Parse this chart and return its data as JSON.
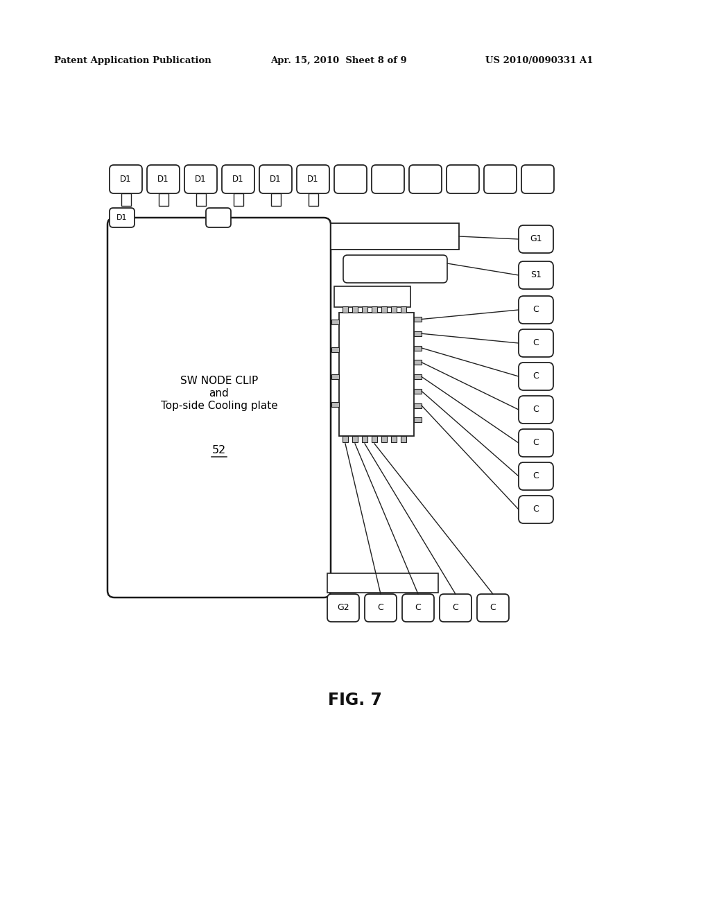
{
  "bg_color": "#ffffff",
  "header_left": "Patent Application Publication",
  "header_mid": "Apr. 15, 2010  Sheet 8 of 9",
  "header_right": "US 2010/0090331 A1",
  "fig_label": "FIG. 7",
  "main_label": "52",
  "main_text_line1": "SW NODE CLIP",
  "main_text_line2": "and",
  "main_text_line3": "Top-side Cooling plate",
  "top_row_labels": [
    "D1",
    "D1",
    "D1",
    "D1",
    "D1",
    "D1",
    "",
    "",
    "",
    "",
    "",
    ""
  ],
  "right_col_labels": [
    "G1",
    "S1",
    "C",
    "C",
    "C",
    "C",
    "C",
    "C",
    "C"
  ],
  "bottom_row_labels": [
    "G2",
    "C",
    "C",
    "C",
    "C"
  ],
  "d1_extra_label": "D1"
}
